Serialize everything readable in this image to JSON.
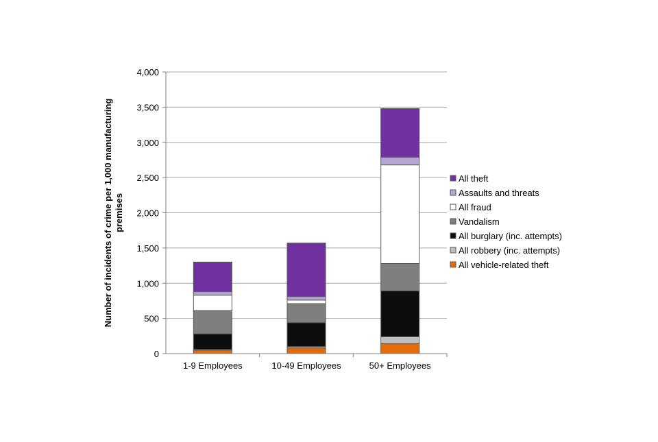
{
  "chart_data": {
    "type": "bar",
    "stacked": true,
    "title": "",
    "xlabel": "",
    "ylabel": "Number of incidents of crime per 1,000 manufacturing premises",
    "ylabel_lines": [
      "Number of incidents of crime per 1,000 manufacturing",
      "premises"
    ],
    "ylim": [
      0,
      4000
    ],
    "yticks": [
      0,
      500,
      1000,
      1500,
      2000,
      2500,
      3000,
      3500,
      4000
    ],
    "ytick_labels": [
      "0",
      "500",
      "1,000",
      "1,500",
      "2,000",
      "2,500",
      "3,000",
      "3,500",
      "4,000"
    ],
    "grid": true,
    "legend_position": "right",
    "categories": [
      "1-9 Employees",
      "10-49 Employees",
      "50+ Employees"
    ],
    "series": [
      {
        "name": "All vehicle-related theft",
        "color": "#E36C0A",
        "values": [
          50,
          80,
          140
        ]
      },
      {
        "name": "All robbery (inc. attempts)",
        "color": "#BFBFBF",
        "values": [
          10,
          20,
          100
        ]
      },
      {
        "name": "All burglary (inc. attempts)",
        "color": "#0D0D0D",
        "values": [
          220,
          340,
          650
        ]
      },
      {
        "name": "Vandalism",
        "color": "#7F7F7F",
        "values": [
          330,
          270,
          390
        ]
      },
      {
        "name": "All fraud",
        "color": "#FFFFFF",
        "values": [
          220,
          50,
          1400
        ]
      },
      {
        "name": "Assaults and threats",
        "color": "#B4A7D6",
        "values": [
          50,
          50,
          110
        ]
      },
      {
        "name": "All theft",
        "color": "#7030A0",
        "values": [
          420,
          760,
          690
        ]
      }
    ],
    "legend_order": [
      "All theft",
      "Assaults and threats",
      "All fraud",
      "Vandalism",
      "All burglary (inc. attempts)",
      "All robbery (inc. attempts)",
      "All vehicle-related theft"
    ]
  },
  "colors": {
    "gridline": "#A6A6A6",
    "axis": "#808080",
    "bar_border": "#595959"
  }
}
